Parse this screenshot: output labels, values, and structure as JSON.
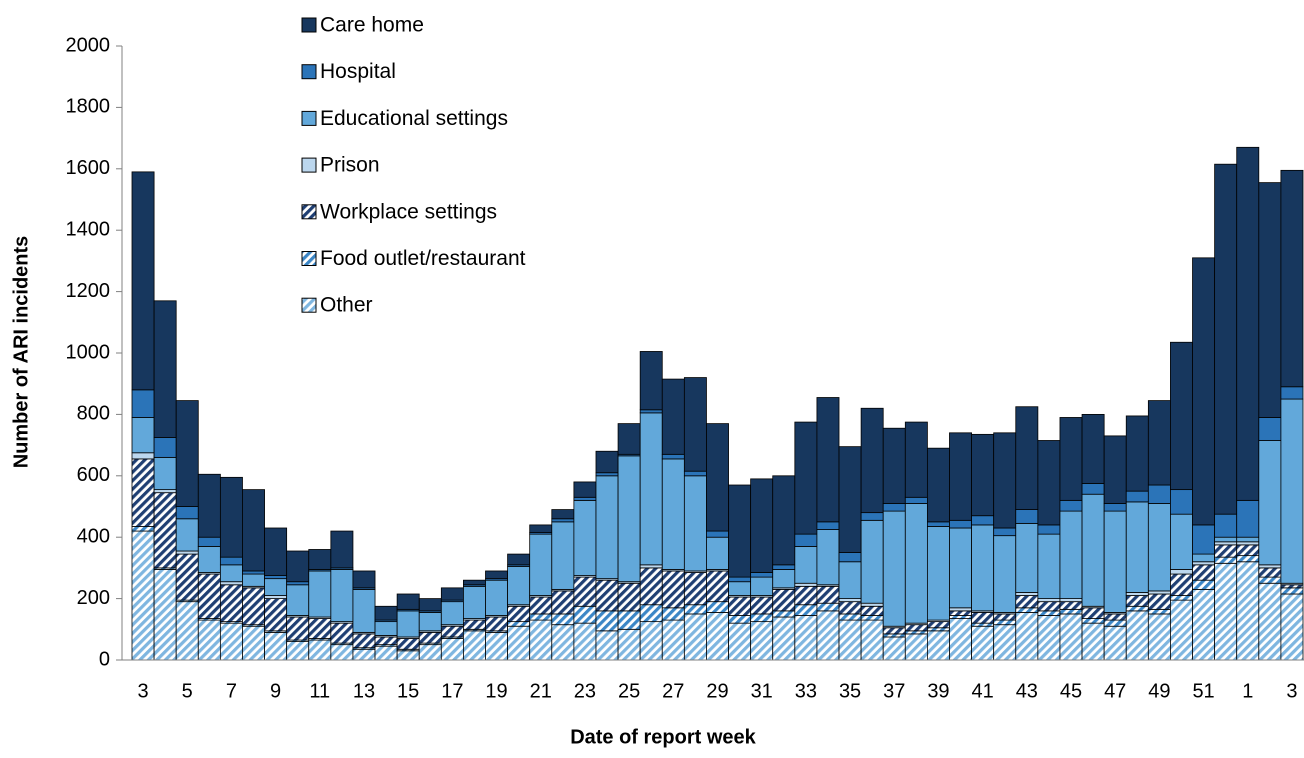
{
  "chart_data": {
    "type": "stacked_bar",
    "x_label": "Date of report week",
    "y_label": "Number of ARI incidents",
    "categories": [
      "3",
      null,
      "5",
      null,
      "7",
      null,
      "9",
      null,
      "11",
      null,
      "13",
      null,
      "15",
      null,
      "17",
      null,
      "19",
      null,
      "21",
      null,
      "23",
      null,
      "25",
      null,
      "27",
      null,
      "29",
      null,
      "31",
      null,
      "33",
      null,
      "35",
      null,
      "37",
      null,
      "39",
      null,
      "41",
      null,
      "43",
      null,
      "45",
      null,
      "47",
      null,
      "49",
      null,
      "51",
      null,
      "1",
      null,
      "3"
    ],
    "ylim": [
      0,
      2000
    ],
    "yticks": [
      0,
      200,
      400,
      600,
      800,
      1000,
      1200,
      1400,
      1600,
      1800,
      2000
    ],
    "series": [
      {
        "name": "Other",
        "color": "#7fb6e0",
        "pattern": "hatch",
        "values": [
          420,
          295,
          190,
          130,
          120,
          110,
          90,
          60,
          65,
          50,
          35,
          45,
          30,
          50,
          70,
          95,
          90,
          110,
          130,
          115,
          120,
          95,
          100,
          125,
          130,
          150,
          155,
          120,
          125,
          140,
          145,
          160,
          130,
          130,
          75,
          85,
          95,
          135,
          110,
          115,
          155,
          145,
          150,
          120,
          110,
          160,
          150,
          195,
          230,
          315,
          320,
          250,
          215
        ]
      },
      {
        "name": "Food outlet/restaurant",
        "color": "#3b86c6",
        "pattern": "hatch",
        "values": [
          15,
          5,
          5,
          5,
          5,
          5,
          5,
          5,
          5,
          5,
          5,
          5,
          5,
          5,
          5,
          5,
          5,
          15,
          20,
          35,
          55,
          65,
          60,
          55,
          40,
          30,
          35,
          25,
          25,
          20,
          35,
          25,
          20,
          15,
          10,
          10,
          10,
          10,
          10,
          15,
          15,
          15,
          15,
          15,
          20,
          15,
          15,
          15,
          30,
          20,
          20,
          20,
          20
        ]
      },
      {
        "name": "Workplace settings",
        "color": "#1f3f73",
        "pattern": "hatch",
        "values": [
          220,
          245,
          150,
          145,
          120,
          120,
          105,
          75,
          65,
          65,
          45,
          25,
          35,
          35,
          35,
          30,
          45,
          50,
          55,
          75,
          95,
          100,
          90,
          120,
          120,
          105,
          100,
          60,
          55,
          70,
          60,
          55,
          40,
          30,
          20,
          20,
          20,
          15,
          35,
          20,
          40,
          30,
          25,
          35,
          20,
          35,
          50,
          70,
          50,
          40,
          35,
          30,
          10
        ]
      },
      {
        "name": "Prison",
        "color": "#bcd7ee",
        "values": [
          20,
          10,
          10,
          5,
          10,
          5,
          10,
          5,
          5,
          5,
          5,
          5,
          5,
          5,
          5,
          5,
          5,
          5,
          5,
          5,
          5,
          5,
          5,
          10,
          5,
          5,
          5,
          5,
          5,
          5,
          10,
          5,
          10,
          10,
          5,
          5,
          5,
          10,
          5,
          5,
          10,
          10,
          10,
          5,
          5,
          10,
          10,
          15,
          10,
          10,
          10,
          10,
          5
        ]
      },
      {
        "name": "Educational settings",
        "color": "#62a8da",
        "values": [
          115,
          105,
          105,
          85,
          55,
          40,
          55,
          100,
          150,
          170,
          140,
          45,
          85,
          60,
          75,
          105,
          115,
          125,
          200,
          220,
          245,
          335,
          410,
          495,
          360,
          310,
          105,
          45,
          60,
          60,
          120,
          180,
          120,
          270,
          375,
          390,
          305,
          260,
          280,
          250,
          225,
          210,
          285,
          365,
          330,
          295,
          285,
          180,
          25,
          15,
          15,
          405,
          600
        ]
      },
      {
        "name": "Hospital",
        "color": "#2b74b8",
        "values": [
          90,
          65,
          40,
          30,
          25,
          10,
          10,
          10,
          5,
          5,
          5,
          5,
          5,
          5,
          5,
          5,
          5,
          5,
          5,
          10,
          10,
          10,
          5,
          10,
          15,
          15,
          20,
          15,
          15,
          15,
          40,
          25,
          30,
          25,
          25,
          20,
          15,
          25,
          30,
          25,
          45,
          30,
          35,
          35,
          25,
          35,
          60,
          80,
          95,
          75,
          120,
          75,
          40
        ]
      },
      {
        "name": "Care home",
        "color": "#17375e",
        "values": [
          710,
          445,
          345,
          205,
          260,
          265,
          155,
          100,
          65,
          120,
          55,
          45,
          50,
          40,
          40,
          15,
          25,
          35,
          25,
          30,
          50,
          70,
          100,
          190,
          245,
          305,
          350,
          300,
          305,
          290,
          365,
          405,
          345,
          340,
          245,
          245,
          240,
          285,
          265,
          310,
          335,
          275,
          270,
          225,
          220,
          245,
          275,
          480,
          870,
          1140,
          1150,
          765,
          705
        ]
      }
    ]
  }
}
